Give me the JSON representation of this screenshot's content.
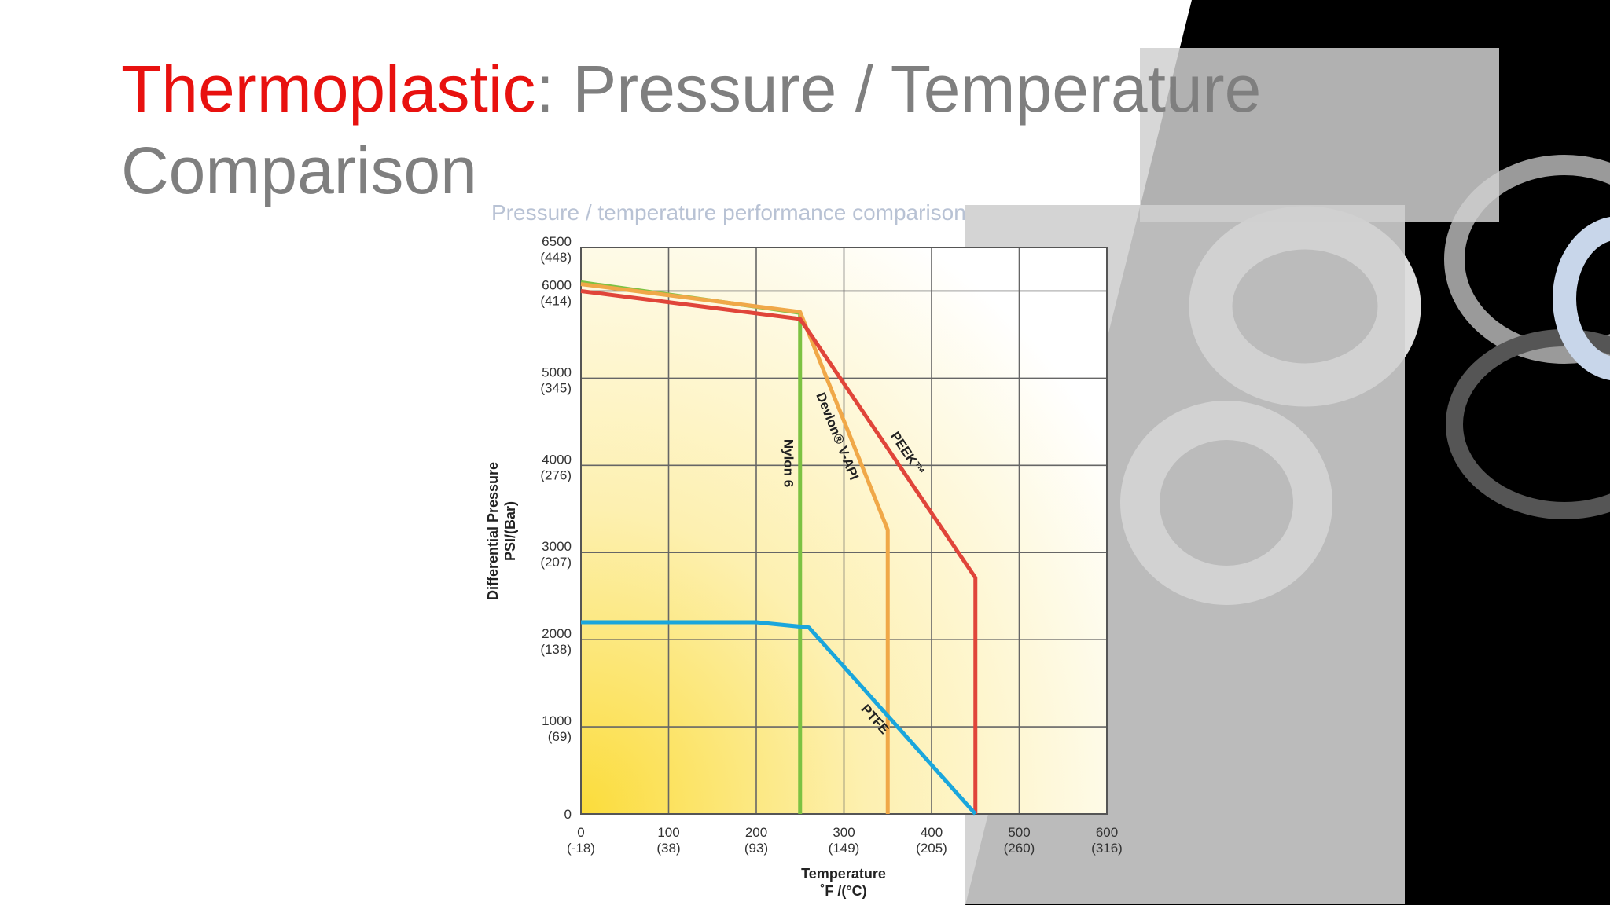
{
  "slide": {
    "title_highlight": "Thermoplastic",
    "title_rest": ": Pressure / Temperature",
    "title_line2": "Comparison"
  },
  "chart_data": {
    "type": "line",
    "title": "Pressure / temperature performance comparison",
    "ylabel": "Differential Pressure",
    "ylabel_unit": "PSI/(Bar)",
    "xlabel": "Temperature",
    "xlabel_unit": "˚F /(°C)",
    "xlim": [
      0,
      600
    ],
    "xticks": [
      0,
      100,
      200,
      300,
      400,
      500,
      600
    ],
    "xtick_sublabels": [
      "(-18)",
      "(38)",
      "(93)",
      "(149)",
      "(205)",
      "(260)",
      "(316)"
    ],
    "ylim": [
      0,
      6500
    ],
    "yticks": [
      0,
      1000,
      2000,
      3000,
      4000,
      5000,
      6000,
      6500
    ],
    "ytick_sublabels": [
      null,
      "(69)",
      "(138)",
      "(207)",
      "(276)",
      "(345)",
      "(414)",
      "(448)"
    ],
    "grid": true,
    "series": [
      {
        "name": "Nylon 6",
        "color": "#7cc242",
        "x": [
          0,
          250,
          250
        ],
        "values": [
          6100,
          5750,
          0
        ]
      },
      {
        "name": "Devlon® V-API",
        "color": "#f0a848",
        "x": [
          0,
          250,
          350,
          350
        ],
        "values": [
          6080,
          5760,
          3260,
          0
        ]
      },
      {
        "name": "PEEK™",
        "color": "#e0453a",
        "x": [
          0,
          250,
          450,
          450
        ],
        "values": [
          6000,
          5680,
          2710,
          0
        ]
      },
      {
        "name": "PTFE",
        "color": "#1aa6dc",
        "x": [
          0,
          200,
          260,
          450
        ],
        "values": [
          2200,
          2200,
          2140,
          0
        ]
      }
    ]
  }
}
